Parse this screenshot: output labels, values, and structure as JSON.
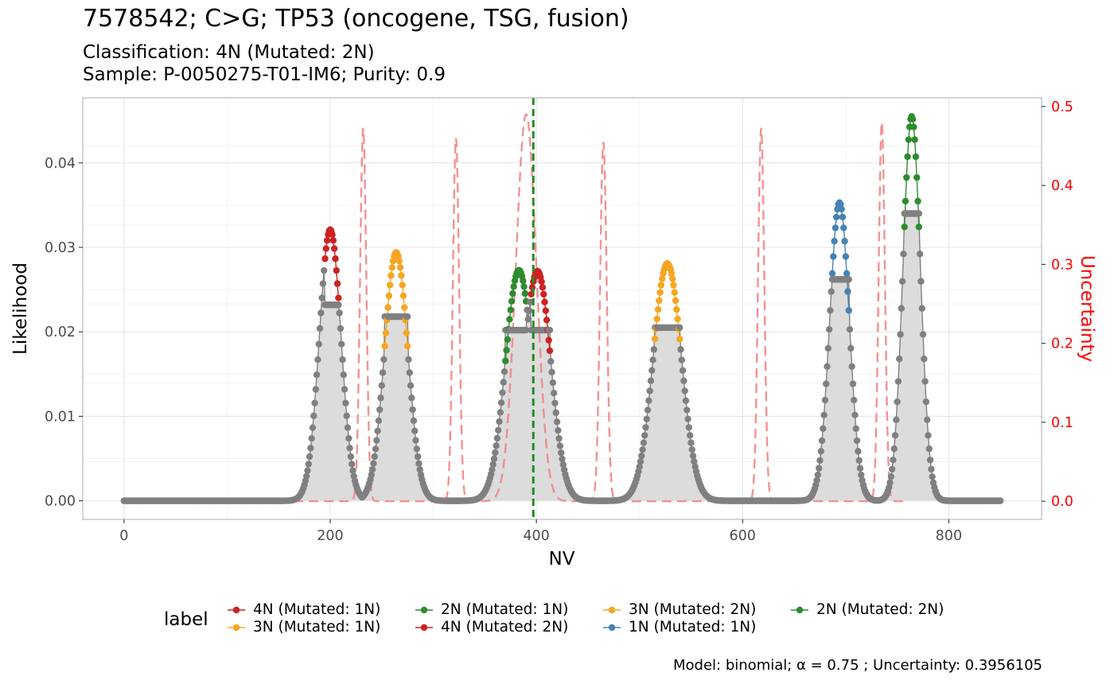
{
  "title": "7578542; C>G; TP53 (oncogene, TSG, fusion)",
  "subtitle_lines": [
    "Classification: 4N (Mutated: 2N)",
    "Sample: P-0050275-T01-IM6; Purity: 0.9"
  ],
  "caption": "Model: binomial; α = 0.75 ; Uncertainty: 0.3956105",
  "chart_data": {
    "type": "scatter",
    "xlabel": "NV",
    "ylabel": "Likelihood",
    "y2label": "Uncertainty",
    "xlim": [
      -40,
      890
    ],
    "ylim": [
      -0.0022,
      0.0477
    ],
    "y2lim": [
      -0.023,
      0.511
    ],
    "x_ticks": [
      0,
      200,
      400,
      600,
      800
    ],
    "x_tick_labels": [
      "0",
      "200",
      "400",
      "600",
      "800"
    ],
    "y_ticks": [
      0.0,
      0.01,
      0.02,
      0.03,
      0.04
    ],
    "y_tick_labels": [
      "0.00",
      "0.01",
      "0.02",
      "0.03",
      "0.04"
    ],
    "y2_ticks": [
      0.0,
      0.1,
      0.2,
      0.3,
      0.4,
      0.5
    ],
    "y2_tick_labels": [
      "0.0",
      "0.1",
      "0.2",
      "0.3",
      "0.4",
      "0.5"
    ],
    "grid": true,
    "x_range_points": [
      0,
      850
    ],
    "vline_x": 397,
    "vline_color": "#228B22",
    "uncertainty_color": "#F08080",
    "gray_color": "#808080",
    "area_color": "#DCDCDC",
    "peaks": [
      {
        "label": "4N (Mutated: 1N)",
        "center": 200,
        "sd": 10.5,
        "height": 0.0321,
        "color": "#CC2222",
        "window": [
          195,
          208
        ],
        "cut_height": 0.0232
      },
      {
        "label": "3N (Mutated: 1N)",
        "center": 264,
        "sd": 11.3,
        "height": 0.0294,
        "color": "#F5A623",
        "window": [
          253,
          275
        ],
        "cut_height": 0.0218
      },
      {
        "label": "2N (Mutated: 1N)",
        "center": 383,
        "sd": 13.0,
        "height": 0.0273,
        "color": "#2E8B2E",
        "window": [
          370,
          390
        ],
        "cut_height": 0.0202
      },
      {
        "label": "4N (Mutated: 2N)",
        "center": 401,
        "sd": 13.0,
        "height": 0.0272,
        "color": "#CC2222",
        "window": [
          395,
          413
        ],
        "cut_height": 0.0202
      },
      {
        "label": "3N (Mutated: 2N)",
        "center": 527,
        "sd": 13.7,
        "height": 0.0281,
        "color": "#F5A623",
        "window": [
          515,
          539
        ],
        "cut_height": 0.0205
      },
      {
        "label": "1N (Mutated: 1N)",
        "center": 694,
        "sd": 9.5,
        "height": 0.0353,
        "color": "#4682B4",
        "window": [
          687,
          703
        ],
        "cut_height": 0.0262
      },
      {
        "label": "2N (Mutated: 2N)",
        "center": 764,
        "sd": 8.5,
        "height": 0.0455,
        "color": "#2E8B2E",
        "window": [
          757,
          771
        ],
        "cut_height": 0.034
      }
    ],
    "uncertainty_spikes": [
      {
        "x": 232,
        "height": 0.473,
        "width": 3.0
      },
      {
        "x": 322,
        "height": 0.46,
        "width": 3.0
      },
      {
        "x": 390,
        "height": 0.49,
        "width": 10.0
      },
      {
        "x": 465,
        "height": 0.455,
        "width": 3.2
      },
      {
        "x": 618,
        "height": 0.473,
        "width": 3.0
      },
      {
        "x": 735,
        "height": 0.48,
        "width": 3.0
      }
    ],
    "legend": {
      "title": "label",
      "position": "bottom",
      "entries": [
        {
          "label": "4N (Mutated: 1N)",
          "color": "#CC2222"
        },
        {
          "label": "3N (Mutated: 1N)",
          "color": "#F5A623"
        },
        {
          "label": "2N (Mutated: 1N)",
          "color": "#2E8B2E"
        },
        {
          "label": "4N (Mutated: 2N)",
          "color": "#CC2222"
        },
        {
          "label": "3N (Mutated: 2N)",
          "color": "#F5A623"
        },
        {
          "label": "1N (Mutated: 1N)",
          "color": "#4682B4"
        },
        {
          "label": "2N (Mutated: 2N)",
          "color": "#2E8B2E"
        }
      ]
    }
  }
}
